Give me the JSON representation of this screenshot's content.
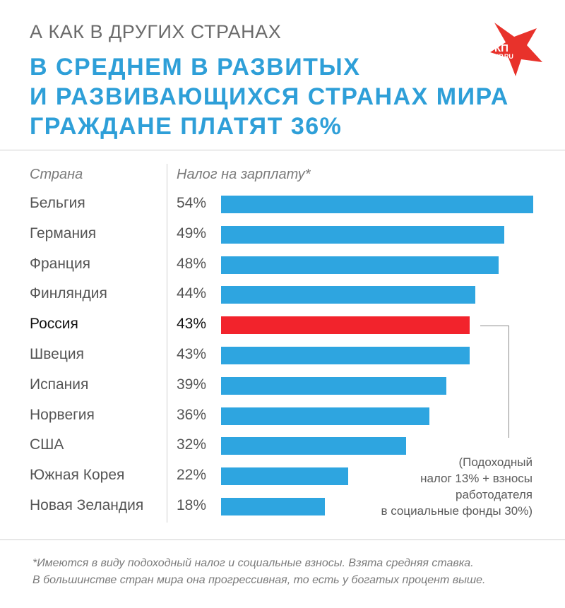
{
  "kicker": "А КАК В ДРУГИХ СТРАНАХ",
  "headline": {
    "line1": "В СРЕДНЕМ В РАЗВИТЫХ",
    "line2": "И РАЗВИВАЮЩИХСЯ СТРАНАХ МИРА",
    "line3": "ГРАЖДАНЕ ПЛАТЯТ 36%"
  },
  "logo": {
    "main": "КП",
    "sub": "KP.RU"
  },
  "colors": {
    "accent": "#2e9fd8",
    "bar": "#2ea5e0",
    "highlight_bar": "#f2232c",
    "logo": "#e8322b"
  },
  "chart_data": {
    "type": "bar",
    "orientation": "horizontal",
    "title": "В среднем в развитых и развивающихся странах мира граждане платят 36%",
    "column_headers": {
      "category": "Страна",
      "value": "Налог на зарплату*"
    },
    "categories": [
      "Бельгия",
      "Германия",
      "Франция",
      "Финляндия",
      "Россия",
      "Швеция",
      "Испания",
      "Норвегия",
      "США",
      "Южная Корея",
      "Новая Зеландия"
    ],
    "values": [
      54,
      49,
      48,
      44,
      43,
      43,
      39,
      36,
      32,
      22,
      18
    ],
    "value_labels": [
      "54%",
      "49%",
      "48%",
      "44%",
      "43%",
      "43%",
      "39%",
      "36%",
      "32%",
      "22%",
      "18%"
    ],
    "highlight": "Россия",
    "unit": "%",
    "xlim": [
      0,
      54
    ],
    "annotation": {
      "target": "Россия",
      "lines": [
        "(Подоходный",
        "налог 13% + взносы",
        "работодателя",
        "в социальные фонды 30%)"
      ]
    }
  },
  "footnote": {
    "line1": "*Имеются в виду подоходный налог и социальные взносы.  Взята средняя ставка.",
    "line2": "В большинстве стран мира она прогрессивная, то есть у богатых процент выше."
  }
}
